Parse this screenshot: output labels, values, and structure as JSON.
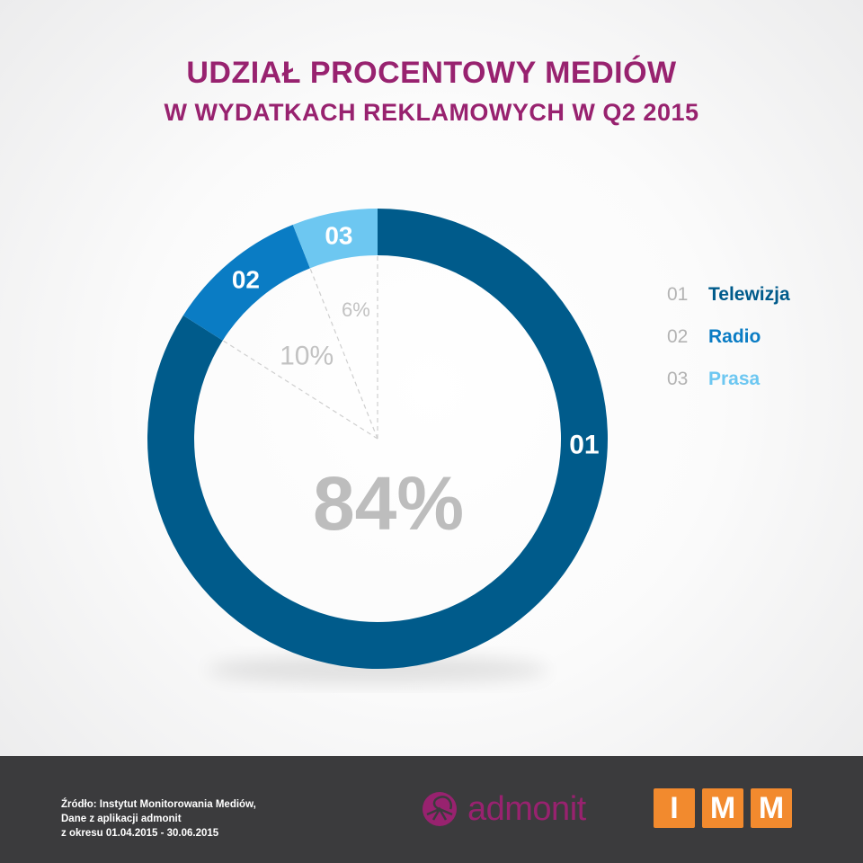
{
  "title_line1": "UDZIAŁ PROCENTOWY MEDIÓW",
  "title_line2": "W WYDATKACH REKLAMOWYCH W Q2 2015",
  "colors": {
    "title": "#98226f",
    "telewizja": "#005b8b",
    "radio": "#0a7cc4",
    "prasa": "#6dc7f1",
    "footer": "#3b3b3d",
    "imm": "#f28a2e"
  },
  "chart_data": {
    "type": "pie",
    "variant": "donut",
    "title": "UDZIAŁ PROCENTOWY MEDIÓW W WYDATKACH REKLAMOWYCH W Q2 2015",
    "categories": [
      "Telewizja",
      "Radio",
      "Prasa"
    ],
    "codes": [
      "01",
      "02",
      "03"
    ],
    "values": [
      84,
      10,
      6
    ],
    "labels": [
      "84%",
      "10%",
      "6%"
    ],
    "legend_position": "right"
  },
  "legend": [
    {
      "num": "01",
      "label": "Telewizja",
      "color": "#005b8b"
    },
    {
      "num": "02",
      "label": "Radio",
      "color": "#0a7cc4"
    },
    {
      "num": "03",
      "label": "Prasa",
      "color": "#6dc7f1"
    }
  ],
  "footer": {
    "source_line1": "Źródło: Instytut Monitorowania Mediów,",
    "source_line2": "Dane z aplikacji admonit",
    "source_line3": "z okresu 01.04.2015 - 30.06.2015",
    "admonit_logo_text": "admonit",
    "imm_letters": [
      "I",
      "M",
      "M"
    ]
  }
}
